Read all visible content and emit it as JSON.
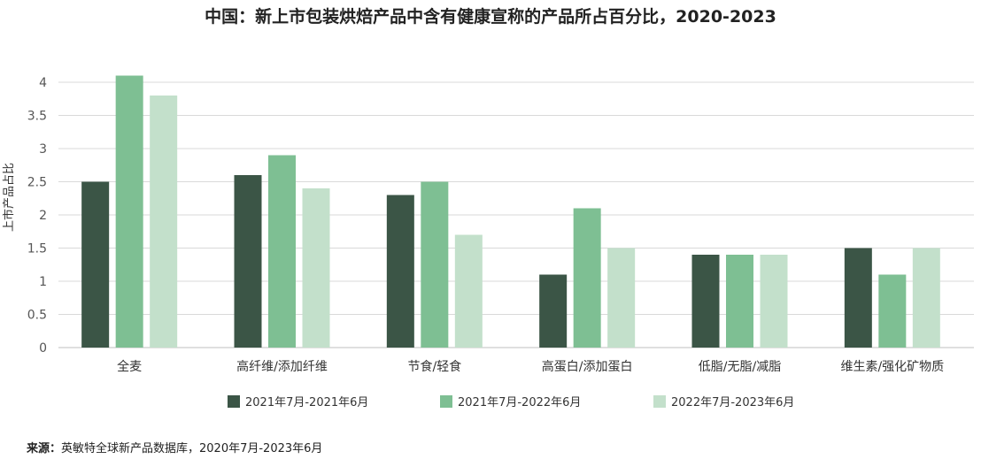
{
  "title": "中国：新上市包装烘焙产品中含有健康宣称的产品所占百分比，2020-2023",
  "source": {
    "label": "来源：",
    "text": "英敏特全球新产品数据库，2020年7月-2023年6月"
  },
  "colors": {
    "series1": "#3b5546",
    "series2": "#7ebf93",
    "series3": "#c3e0cb",
    "grid": "#d9d9d9",
    "axis_text": "#555555"
  },
  "chart_data": {
    "type": "bar",
    "title": "中国：新上市包装烘焙产品中含有健康宣称的产品所占百分比，2020-2023",
    "xlabel": "",
    "ylabel": "上市产品占比",
    "ylim": [
      0,
      4
    ],
    "yticks": [
      "0",
      "0.5",
      "1",
      "1.5",
      "2",
      "2.5",
      "3",
      "3.5",
      "4"
    ],
    "grid": true,
    "legend_position": "bottom",
    "categories": [
      "全麦",
      "高纤维/添加纤维",
      "节食/轻食",
      "高蛋白/添加蛋白",
      "低脂/无脂/减脂",
      "维生素/强化矿物质"
    ],
    "series": [
      {
        "name": "2021年7月-2021年6月",
        "values": [
          2.5,
          2.6,
          2.3,
          1.1,
          1.4,
          1.5
        ]
      },
      {
        "name": "2021年7月-2022年6月",
        "values": [
          4.1,
          2.9,
          2.5,
          2.1,
          1.4,
          1.1
        ]
      },
      {
        "name": "2022年7月-2023年6月",
        "values": [
          3.8,
          2.4,
          1.7,
          1.5,
          1.4,
          1.5
        ]
      }
    ]
  }
}
